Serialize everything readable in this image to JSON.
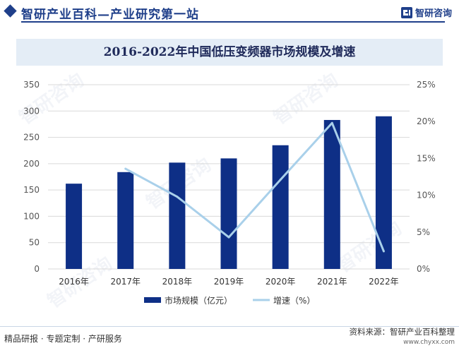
{
  "header": {
    "title": "智研产业百科—产业研究第一站",
    "brand": "智研咨询"
  },
  "chart_data": {
    "type": "bar",
    "title": "2016-2022年中国低压变频器市场规模及增速",
    "categories": [
      "2016年",
      "2017年",
      "2018年",
      "2019年",
      "2020年",
      "2021年",
      "2022年"
    ],
    "series": [
      {
        "name": "市场规模（亿元）",
        "type": "bar",
        "axis": "left",
        "color": "#0e2f86",
        "values": [
          162,
          184,
          202,
          210,
          235,
          283,
          290
        ]
      },
      {
        "name": "增速（%）",
        "type": "line",
        "axis": "right",
        "color": "#a9d0ea",
        "values": [
          null,
          13.6,
          9.8,
          4.3,
          12.1,
          19.8,
          2.4
        ]
      }
    ],
    "y_left": {
      "min": 0,
      "max": 350,
      "ticks": [
        "0",
        "50",
        "100",
        "150",
        "200",
        "250",
        "300",
        "350"
      ]
    },
    "y_right": {
      "min": 0,
      "max": 25,
      "ticks": [
        "0%",
        "5%",
        "10%",
        "15%",
        "20%",
        "25%"
      ]
    },
    "grid": true,
    "legend_position": "bottom-center"
  },
  "footer": {
    "left": "精品研报 · 专题定制 · 产研服务",
    "source": "资料来源：智研产业百科整理",
    "url": "www.chyxx.com"
  }
}
